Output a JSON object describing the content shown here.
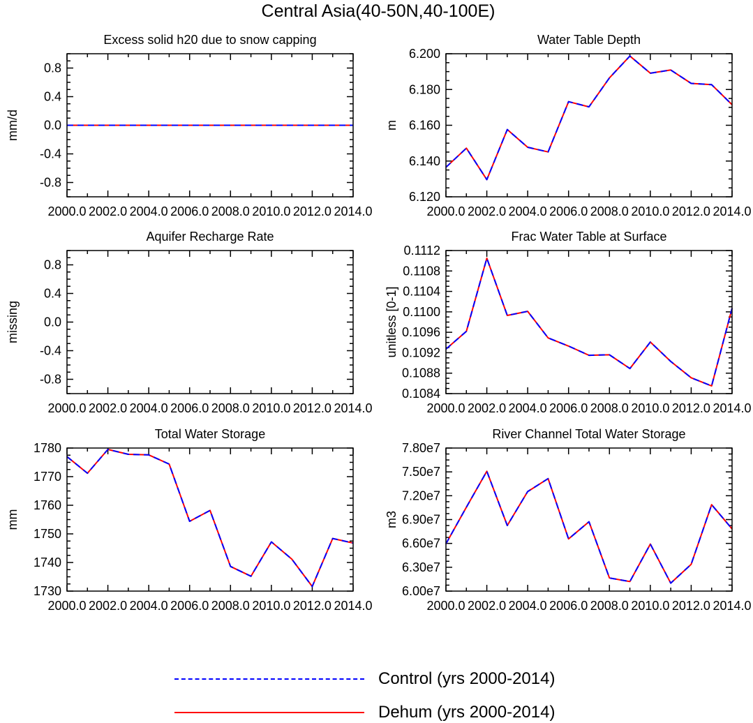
{
  "figure": {
    "title": "Central Asia(40-50N,40-100E)"
  },
  "legend": {
    "entries": [
      {
        "label": "Control (yrs 2000-2014)",
        "color": "#0000ff",
        "style": "dashed"
      },
      {
        "label": "Dehum (yrs 2000-2014)",
        "color": "#ff0000",
        "style": "solid"
      }
    ]
  },
  "chart_data": [
    {
      "type": "line",
      "title": "Excess solid h20 due to snow capping",
      "ylabel": "mm/d",
      "xlim": [
        2000,
        2014
      ],
      "ylim": [
        -1,
        1
      ],
      "x_ticks": [
        "2000.0",
        "2002.0",
        "2004.0",
        "2006.0",
        "2008.0",
        "2010.0",
        "2012.0",
        "2014.0"
      ],
      "y_ticks": [
        {
          "v": 0.8,
          "label": "0.8"
        },
        {
          "v": 0.4,
          "label": "0.4"
        },
        {
          "v": 0.0,
          "label": "0.0"
        },
        {
          "v": -0.4,
          "label": "-0.4"
        },
        {
          "v": -0.8,
          "label": "-0.8"
        }
      ],
      "x": [
        2000,
        2001,
        2002,
        2003,
        2004,
        2005,
        2006,
        2007,
        2008,
        2009,
        2010,
        2011,
        2012,
        2013,
        2014
      ],
      "series": [
        {
          "name": "Control (yrs 2000-2014)",
          "values": [
            0,
            0,
            0,
            0,
            0,
            0,
            0,
            0,
            0,
            0,
            0,
            0,
            0,
            0,
            0
          ]
        },
        {
          "name": "Dehum (yrs 2000-2014)",
          "values": [
            0,
            0,
            0,
            0,
            0,
            0,
            0,
            0,
            0,
            0,
            0,
            0,
            0,
            0,
            0
          ]
        }
      ]
    },
    {
      "type": "line",
      "title": "Water Table Depth",
      "ylabel": "m",
      "xlim": [
        2000,
        2014
      ],
      "ylim": [
        6.12,
        6.2
      ],
      "x_ticks": [
        "2000.0",
        "2002.0",
        "2004.0",
        "2006.0",
        "2008.0",
        "2010.0",
        "2012.0",
        "2014.0"
      ],
      "y_ticks": [
        {
          "v": 6.2,
          "label": "6.200"
        },
        {
          "v": 6.18,
          "label": "6.180"
        },
        {
          "v": 6.16,
          "label": "6.160"
        },
        {
          "v": 6.14,
          "label": "6.140"
        },
        {
          "v": 6.12,
          "label": "6.120"
        }
      ],
      "x": [
        2000,
        2001,
        2002,
        2003,
        2004,
        2005,
        2006,
        2007,
        2008,
        2009,
        2010,
        2011,
        2012,
        2013,
        2014
      ],
      "series": [
        {
          "name": "Control (yrs 2000-2014)",
          "values": [
            6.1365,
            6.1472,
            6.1296,
            6.1576,
            6.1477,
            6.1451,
            6.1732,
            6.1703,
            6.1865,
            6.1987,
            6.1891,
            6.1909,
            6.1834,
            6.1827,
            6.1715
          ]
        },
        {
          "name": "Dehum (yrs 2000-2014)",
          "values": [
            6.1365,
            6.1472,
            6.1296,
            6.1576,
            6.1477,
            6.1451,
            6.1732,
            6.1703,
            6.1865,
            6.1987,
            6.1891,
            6.1909,
            6.1834,
            6.1827,
            6.1715
          ]
        }
      ]
    },
    {
      "type": "line",
      "title": "Aquifer Recharge Rate",
      "ylabel": "missing",
      "xlim": [
        2000,
        2014
      ],
      "ylim": [
        -1,
        1
      ],
      "x_ticks": [
        "2000.0",
        "2002.0",
        "2004.0",
        "2006.0",
        "2008.0",
        "2010.0",
        "2012.0",
        "2014.0"
      ],
      "y_ticks": [
        {
          "v": 0.8,
          "label": "0.8"
        },
        {
          "v": 0.4,
          "label": "0.4"
        },
        {
          "v": 0.0,
          "label": "0.0"
        },
        {
          "v": -0.4,
          "label": "-0.4"
        },
        {
          "v": -0.8,
          "label": "-0.8"
        }
      ],
      "x": [],
      "series": []
    },
    {
      "type": "line",
      "title": "Frac Water Table at Surface",
      "ylabel": "unitless [0-1]",
      "xlim": [
        2000,
        2014
      ],
      "ylim": [
        0.1084,
        0.1112
      ],
      "x_ticks": [
        "2000.0",
        "2002.0",
        "2004.0",
        "2006.0",
        "2008.0",
        "2010.0",
        "2012.0",
        "2014.0"
      ],
      "y_ticks": [
        {
          "v": 0.1112,
          "label": "0.1112"
        },
        {
          "v": 0.1108,
          "label": "0.1108"
        },
        {
          "v": 0.1104,
          "label": "0.1104"
        },
        {
          "v": 0.11,
          "label": "0.1100"
        },
        {
          "v": 0.1096,
          "label": "0.1096"
        },
        {
          "v": 0.1092,
          "label": "0.1092"
        },
        {
          "v": 0.1088,
          "label": "0.1088"
        },
        {
          "v": 0.1084,
          "label": "0.1084"
        }
      ],
      "x": [
        2000,
        2001,
        2002,
        2003,
        2004,
        2005,
        2006,
        2007,
        2008,
        2009,
        2010,
        2011,
        2012,
        2013,
        2014
      ],
      "series": [
        {
          "name": "Control (yrs 2000-2014)",
          "values": [
            0.10927,
            0.10962,
            0.11105,
            0.10993,
            0.11001,
            0.10949,
            0.10933,
            0.10915,
            0.10916,
            0.10889,
            0.10941,
            0.10903,
            0.10871,
            0.10855,
            0.11007
          ]
        },
        {
          "name": "Dehum (yrs 2000-2014)",
          "values": [
            0.10927,
            0.10962,
            0.11105,
            0.10993,
            0.11001,
            0.10949,
            0.10933,
            0.10915,
            0.10916,
            0.10889,
            0.10941,
            0.10903,
            0.10871,
            0.10855,
            0.11007
          ]
        }
      ]
    },
    {
      "type": "line",
      "title": "Total Water Storage",
      "ylabel": "mm",
      "xlim": [
        2000,
        2014
      ],
      "ylim": [
        1730,
        1780
      ],
      "x_ticks": [
        "2000.0",
        "2002.0",
        "2004.0",
        "2006.0",
        "2008.0",
        "2010.0",
        "2012.0",
        "2014.0"
      ],
      "y_ticks": [
        {
          "v": 1780,
          "label": "1780"
        },
        {
          "v": 1770,
          "label": "1770"
        },
        {
          "v": 1760,
          "label": "1760"
        },
        {
          "v": 1750,
          "label": "1750"
        },
        {
          "v": 1740,
          "label": "1740"
        },
        {
          "v": 1730,
          "label": "1730"
        }
      ],
      "x": [
        2000,
        2001,
        2002,
        2003,
        2004,
        2005,
        2006,
        2007,
        2008,
        2009,
        2010,
        2011,
        2012,
        2013,
        2014
      ],
      "series": [
        {
          "name": "Control (yrs 2000-2014)",
          "values": [
            1777.0,
            1771.2,
            1779.5,
            1777.8,
            1777.6,
            1774.4,
            1754.4,
            1758.2,
            1738.6,
            1735.2,
            1747.2,
            1741.2,
            1731.6,
            1748.4,
            1746.8
          ]
        },
        {
          "name": "Dehum (yrs 2000-2014)",
          "values": [
            1777.0,
            1771.2,
            1779.5,
            1777.8,
            1777.6,
            1774.4,
            1754.4,
            1758.2,
            1738.6,
            1735.2,
            1747.2,
            1741.2,
            1731.6,
            1748.4,
            1746.8
          ]
        }
      ]
    },
    {
      "type": "line",
      "title": "River Channel Total Water Storage",
      "ylabel": "m3",
      "xlim": [
        2000,
        2014
      ],
      "ylim": [
        60000000,
        78000000
      ],
      "x_ticks": [
        "2000.0",
        "2002.0",
        "2004.0",
        "2006.0",
        "2008.0",
        "2010.0",
        "2012.0",
        "2014.0"
      ],
      "y_ticks": [
        {
          "v": 78000000,
          "label": "7.80e7"
        },
        {
          "v": 75000000,
          "label": "7.50e7"
        },
        {
          "v": 72000000,
          "label": "7.20e7"
        },
        {
          "v": 69000000,
          "label": "6.90e7"
        },
        {
          "v": 66000000,
          "label": "6.60e7"
        },
        {
          "v": 63000000,
          "label": "6.30e7"
        },
        {
          "v": 60000000,
          "label": "6.00e7"
        }
      ],
      "x": [
        2000,
        2001,
        2002,
        2003,
        2004,
        2005,
        2006,
        2007,
        2008,
        2009,
        2010,
        2011,
        2012,
        2013,
        2014
      ],
      "series": [
        {
          "name": "Control (yrs 2000-2014)",
          "values": [
            65950000,
            70550000,
            75080000,
            68250000,
            72520000,
            74150000,
            66570000,
            68730000,
            61650000,
            61200000,
            65920000,
            61000000,
            63370000,
            70870000,
            67830000
          ]
        },
        {
          "name": "Dehum (yrs 2000-2014)",
          "values": [
            65950000,
            70550000,
            75080000,
            68250000,
            72520000,
            74150000,
            66570000,
            68730000,
            61650000,
            61200000,
            65920000,
            61000000,
            63370000,
            70870000,
            67830000
          ]
        }
      ]
    }
  ]
}
